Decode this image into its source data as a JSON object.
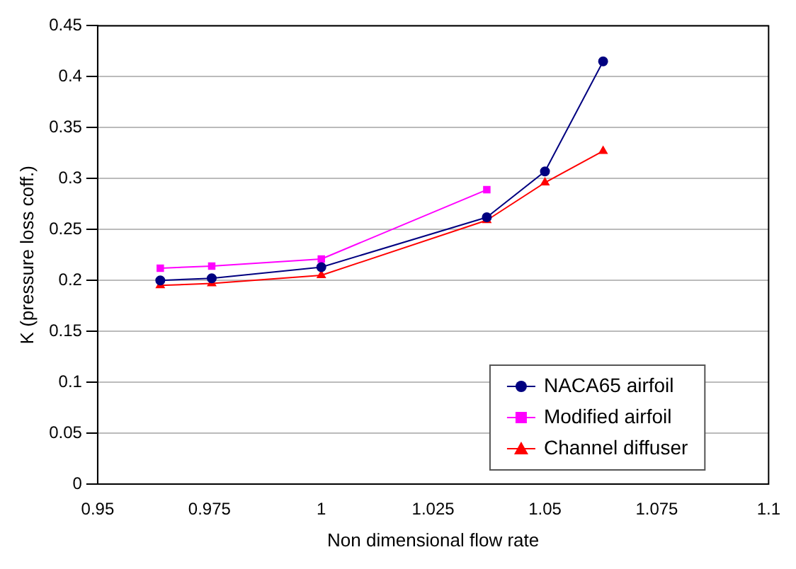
{
  "chart_data": {
    "type": "line",
    "xlabel": "Non dimensional flow rate",
    "ylabel": "K (pressure loss coff.)",
    "xlim": [
      0.95,
      1.1
    ],
    "xticks": [
      0.95,
      0.975,
      1,
      1.025,
      1.05,
      1.075,
      1.1
    ],
    "ylim": [
      0,
      0.45
    ],
    "yticks": [
      0,
      0.05,
      0.1,
      0.15,
      0.2,
      0.25,
      0.3,
      0.35,
      0.4,
      0.45
    ],
    "grid": "y",
    "legend": "bottom right",
    "series": [
      {
        "name": "NACA65 airfoil",
        "color": "#000080",
        "marker": "circle",
        "x": [
          0.964,
          0.9755,
          1.0,
          1.037,
          1.05,
          1.063
        ],
        "values": [
          0.2,
          0.202,
          0.213,
          0.262,
          0.307,
          0.415
        ]
      },
      {
        "name": "Modified airfoil",
        "color": "#ff00ff",
        "marker": "square",
        "x": [
          0.964,
          0.9755,
          1.0,
          1.037
        ],
        "values": [
          0.212,
          0.214,
          0.221,
          0.289
        ]
      },
      {
        "name": "Channel diffuser",
        "color": "#ff0000",
        "marker": "triangle",
        "x": [
          0.964,
          0.9755,
          1.0,
          1.037,
          1.05,
          1.063
        ],
        "values": [
          0.195,
          0.197,
          0.205,
          0.259,
          0.296,
          0.327
        ]
      }
    ]
  }
}
